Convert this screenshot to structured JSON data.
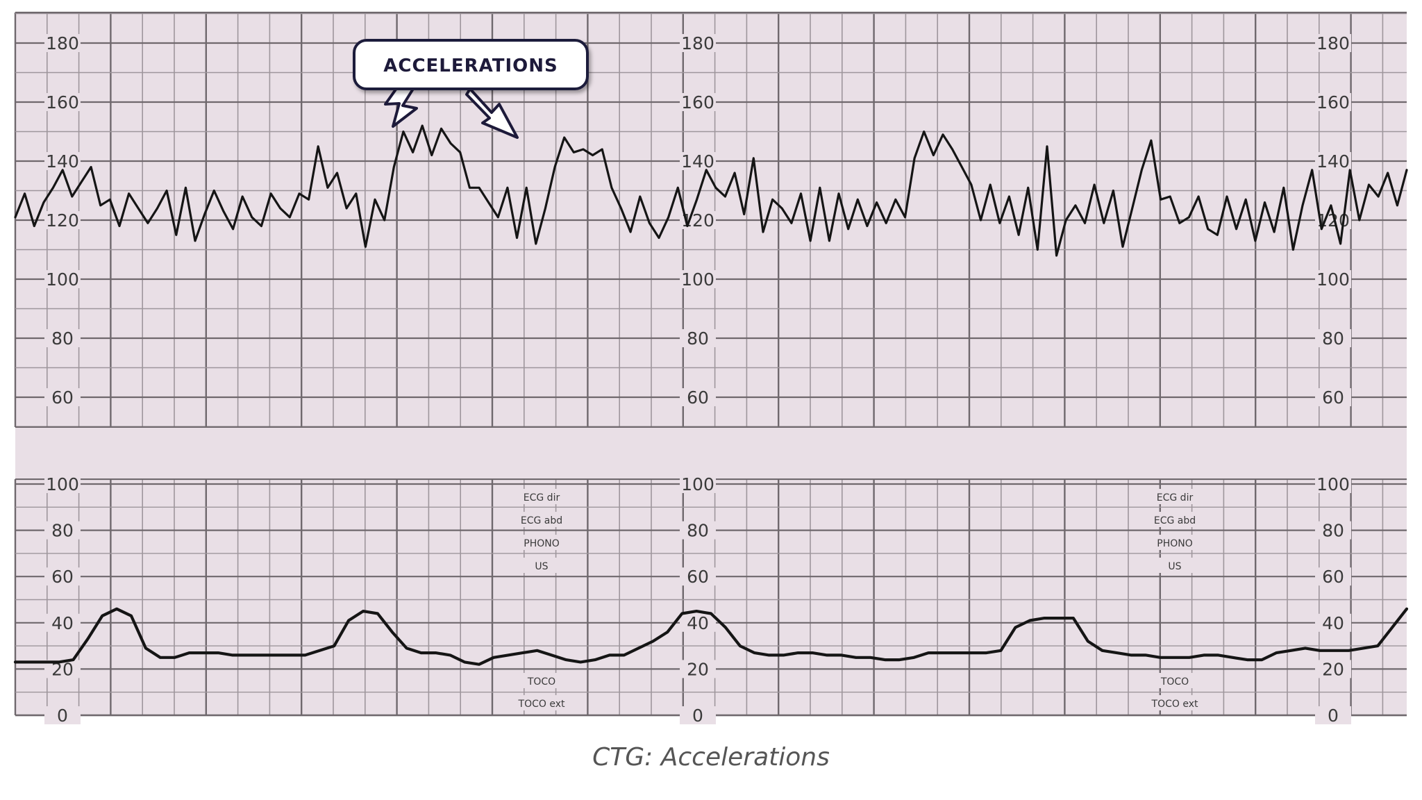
{
  "caption": "CTG: Accelerations",
  "annotation": {
    "label": "ACCELERATIONS"
  },
  "colors": {
    "paper": "#e9dfe6",
    "grid_minor": "#9e969c",
    "grid_major": "#6f686d",
    "trace": "#151515"
  },
  "chart_data": [
    {
      "type": "line",
      "series": [
        {
          "values": [
            121,
            129,
            118,
            126,
            131,
            137,
            128,
            133,
            138,
            125,
            127,
            118,
            129,
            124,
            119,
            124,
            130,
            115,
            131,
            113,
            122,
            130,
            123,
            117,
            128,
            121,
            118,
            129,
            124,
            121,
            129,
            127,
            145,
            131,
            136,
            124,
            129,
            111,
            127,
            120,
            138,
            150,
            143,
            152,
            142,
            151,
            146,
            143,
            131,
            131,
            126,
            121,
            131,
            114,
            131,
            112,
            124,
            138,
            148,
            143,
            144,
            142,
            144,
            131,
            124,
            116,
            128,
            119,
            114,
            121,
            131,
            118,
            127,
            137,
            131,
            128,
            136,
            122,
            141,
            116,
            127,
            124,
            119,
            129,
            113,
            131,
            113,
            129,
            117,
            127,
            118,
            126,
            119,
            127,
            121,
            141,
            150,
            142,
            149,
            144,
            138,
            132,
            120,
            132,
            119,
            128,
            115,
            131,
            110,
            145,
            108,
            120,
            125,
            119,
            132,
            119,
            130,
            111,
            124,
            137,
            147,
            127,
            128,
            119,
            121,
            128,
            117,
            115,
            128,
            117,
            127,
            113,
            126,
            116,
            131,
            110,
            125,
            137,
            117,
            125,
            112,
            137,
            120,
            132,
            128,
            136,
            125,
            137
          ]
        }
      ],
      "ylim": [
        60,
        180
      ],
      "yticks": [
        60,
        80,
        100,
        120,
        140,
        160,
        180
      ]
    },
    {
      "type": "line",
      "series": [
        {
          "values": [
            23,
            23,
            23,
            23,
            24,
            33,
            43,
            46,
            43,
            29,
            25,
            25,
            27,
            27,
            27,
            26,
            26,
            26,
            26,
            26,
            26,
            28,
            30,
            41,
            45,
            44,
            36,
            29,
            27,
            27,
            26,
            23,
            22,
            25,
            26,
            27,
            28,
            26,
            24,
            23,
            24,
            26,
            26,
            29,
            32,
            36,
            44,
            45,
            44,
            38,
            30,
            27,
            26,
            26,
            27,
            27,
            26,
            26,
            25,
            25,
            24,
            24,
            25,
            27,
            27,
            27,
            27,
            27,
            28,
            38,
            41,
            42,
            42,
            42,
            32,
            28,
            27,
            26,
            26,
            25,
            25,
            25,
            26,
            26,
            25,
            24,
            24,
            27,
            28,
            29,
            28,
            28,
            28,
            29,
            30,
            38,
            46
          ]
        }
      ],
      "ylim": [
        0,
        100
      ],
      "yticks": [
        0,
        20,
        40,
        60,
        80,
        100
      ],
      "mode_labels_upper": [
        "ECG dir",
        "ECG abd",
        "PHONO",
        "US"
      ],
      "mode_labels_lower": [
        "TOCO",
        "TOCO ext"
      ]
    }
  ]
}
